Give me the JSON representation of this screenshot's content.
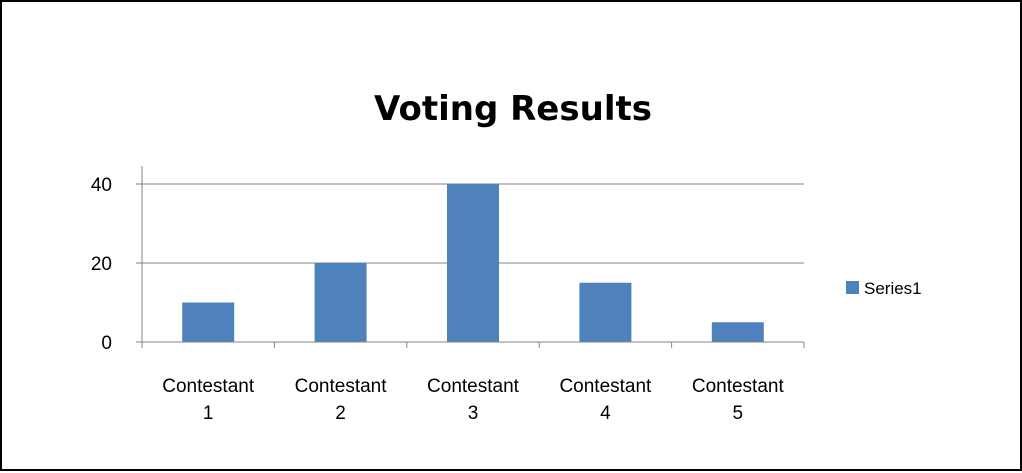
{
  "chart_data": {
    "type": "bar",
    "title": "Voting Results",
    "xlabel": "",
    "ylabel": "",
    "categories": [
      "Contestant 1",
      "Contestant 2",
      "Contestant 3",
      "Contestant 4",
      "Contestant 5"
    ],
    "category_lines": [
      [
        "Contestant",
        "1"
      ],
      [
        "Contestant",
        "2"
      ],
      [
        "Contestant",
        "3"
      ],
      [
        "Contestant",
        "4"
      ],
      [
        "Contestant",
        "5"
      ]
    ],
    "series": [
      {
        "name": "Series1",
        "values": [
          10,
          20,
          40,
          15,
          5
        ]
      }
    ],
    "ylim": [
      0,
      40
    ],
    "yticks": [
      0,
      20,
      40
    ],
    "grid": true,
    "legend_position": "right",
    "colors": {
      "bar": "#4F81BD",
      "grid": "#868686",
      "axis": "#868686"
    }
  }
}
